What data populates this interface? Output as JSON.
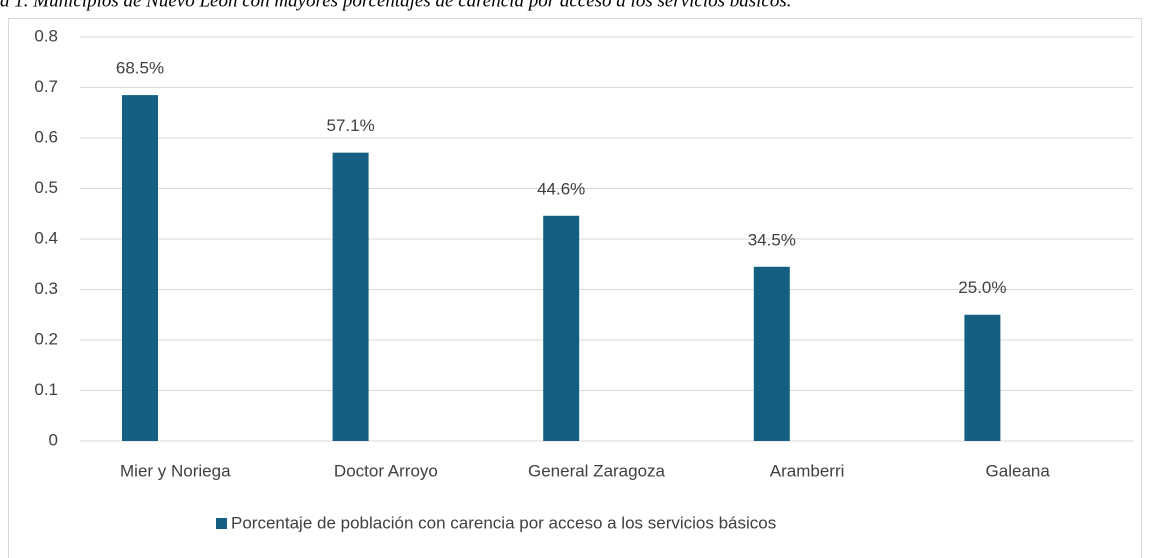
{
  "chart_data": {
    "type": "bar",
    "title": "a 1. Municipios de Nuevo León con mayores porcentajes de carencia por acceso a los servicios básicos.",
    "categories": [
      "Mier y Noriega",
      "Doctor Arroyo",
      "General Zaragoza",
      "Aramberri",
      "Galeana"
    ],
    "values": [
      0.685,
      0.571,
      0.446,
      0.345,
      0.25
    ],
    "value_labels": [
      "68.5%",
      "57.1%",
      "44.6%",
      "34.5%",
      "25.0%"
    ],
    "series_name": "Porcentaje de población con carencia por acceso a los servicios básicos",
    "color": "#156082",
    "ylim": [
      0,
      0.8
    ],
    "yticks": [
      0,
      0.1,
      0.2,
      0.3,
      0.4,
      0.5,
      0.6,
      0.7,
      0.8
    ],
    "grid": true,
    "legend": "bottom"
  }
}
